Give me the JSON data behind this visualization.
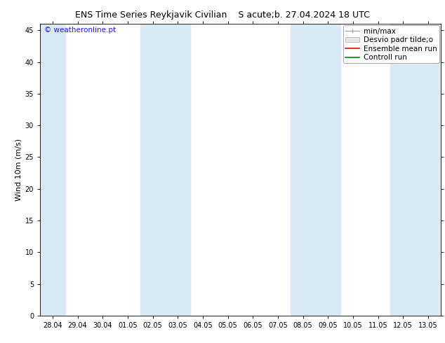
{
  "title": "ENS Time Series Reykjavik Civilian    S acute;b. 27.04.2024 18 UTC",
  "ylabel": "Wind 10m (m/s)",
  "watermark": "© weatheronline.pt",
  "ylim": [
    0,
    46
  ],
  "yticks": [
    0,
    5,
    10,
    15,
    20,
    25,
    30,
    35,
    40,
    45
  ],
  "x_labels": [
    "28.04",
    "29.04",
    "30.04",
    "01.05",
    "02.05",
    "03.05",
    "04.05",
    "05.05",
    "06.05",
    "07.05",
    "08.05",
    "09.05",
    "10.05",
    "11.05",
    "12.05",
    "13.05"
  ],
  "num_points": 16,
  "band_color": "#daeaf5",
  "band_alpha": 1.0,
  "band_indices": [
    0,
    4,
    6,
    10,
    14
  ],
  "bg_color": "#ffffff",
  "plot_bg_color": "#ffffff",
  "title_fontsize": 9,
  "tick_fontsize": 7,
  "ylabel_fontsize": 8,
  "watermark_color": "#1a1aff",
  "watermark_fontsize": 7.5,
  "legend_fontsize": 7.5,
  "legend_label_min_max": "min/max",
  "legend_label_desvio": "Desvio padr tilde;o",
  "legend_label_ensemble": "Ensemble mean run",
  "legend_label_control": "Controll run",
  "legend_color_minmax": "#aaaaaa",
  "legend_color_desvio": "#cccccc",
  "legend_color_ensemble": "#ff0000",
  "legend_color_control": "#008800"
}
